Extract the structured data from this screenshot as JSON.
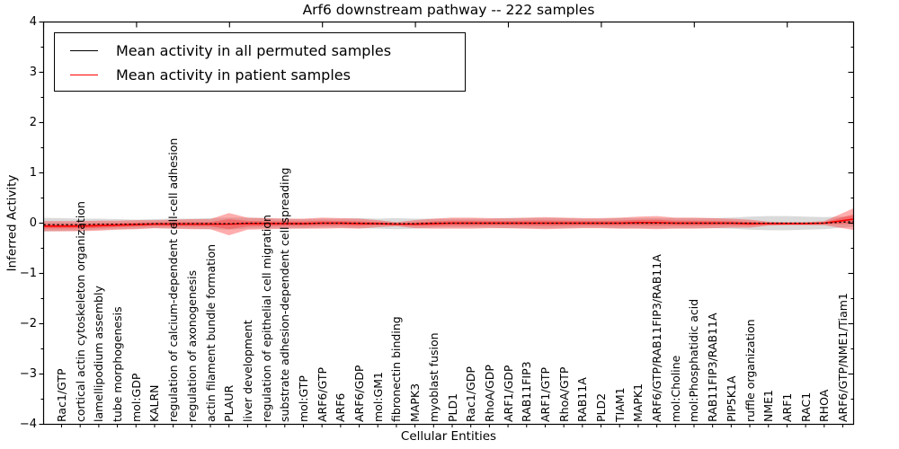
{
  "figure": {
    "title": "Arf6 downstream pathway -- 222 samples",
    "xlabel": "Cellular Entities",
    "ylabel": "Inferred Activity"
  },
  "legend": {
    "items": [
      {
        "label": "Mean activity in all permuted samples",
        "color": "#000000"
      },
      {
        "label": "Mean activity in patient samples",
        "color": "#ff0000"
      }
    ]
  },
  "colors": {
    "permuted_line": "#000000",
    "patient_line": "#ff0000",
    "patient_band": "#ff2828",
    "permuted_band": "#d3d3d3",
    "axis": "#000000"
  },
  "chart_data": {
    "type": "line",
    "title": "Arf6 downstream pathway -- 222 samples",
    "xlabel": "Cellular Entities",
    "ylabel": "Inferred Activity",
    "ylim": [
      -4,
      4
    ],
    "yticks": [
      4,
      3,
      2,
      1,
      0,
      -1,
      -2,
      -3,
      -4
    ],
    "grid": false,
    "legend_position": "upper left",
    "categories": [
      "Rac1/GTP",
      "cortical actin cytoskeleton organization",
      "lamellipodium assembly",
      "tube morphogenesis",
      "mol:GDP",
      "KALRN",
      "regulation of calcium-dependent cell-cell adhesion",
      "regulation of axonogenesis",
      "actin filament bundle formation",
      "PLAUR",
      "liver development",
      "regulation of epithelial cell migration",
      "substrate adhesion-dependent cell spreading",
      "mol:GTP",
      "ARF6/GTP",
      "ARF6",
      "ARF6/GDP",
      "mol:GM1",
      "fibronectin binding",
      "MAPK3",
      "myoblast fusion",
      "PLD1",
      "Rac1/GDP",
      "RhoA/GDP",
      "ARF1/GDP",
      "RAB11FIP3",
      "ARF1/GTP",
      "RhoA/GTP",
      "RAB11A",
      "PLD2",
      "TIAM1",
      "MAPK1",
      "ARF6/GTP/RAB11FIP3/RAB11A",
      "mol:Choline",
      "mol:Phosphatidic acid",
      "RAB11FIP3/RAB11A",
      "PIP5K1A",
      "ruffle organization",
      "NME1",
      "ARF1",
      "RAC1",
      "RHOA",
      "ARF6/GTP/NME1/Tiam1"
    ],
    "series": [
      {
        "name": "Mean activity in all permuted samples",
        "color": "#000000",
        "style": "dotted",
        "values": [
          -0.03,
          -0.03,
          -0.02,
          -0.02,
          -0.02,
          -0.01,
          -0.01,
          -0.01,
          -0.01,
          -0.01,
          0,
          0,
          -0.01,
          -0.01,
          0,
          0,
          0,
          -0.01,
          -0.01,
          -0.01,
          0,
          0,
          0,
          0,
          0,
          0,
          0,
          0,
          0,
          0,
          0,
          0,
          0,
          0,
          0,
          0,
          0,
          0,
          0,
          0,
          0,
          0,
          0.02
        ],
        "band_halfwidth": [
          0.13,
          0.12,
          0.11,
          0.1,
          0.09,
          0.09,
          0.1,
          0.1,
          0.11,
          0.12,
          0.11,
          0.1,
          0.1,
          0.09,
          0.09,
          0.09,
          0.1,
          0.1,
          0.11,
          0.1,
          0.09,
          0.09,
          0.09,
          0.09,
          0.1,
          0.1,
          0.1,
          0.1,
          0.09,
          0.09,
          0.1,
          0.1,
          0.1,
          0.1,
          0.1,
          0.1,
          0.11,
          0.13,
          0.14,
          0.14,
          0.13,
          0.12,
          0.11
        ],
        "band_color": "#d3d3d3"
      },
      {
        "name": "Mean activity in patient samples",
        "color": "#ff0000",
        "style": "solid",
        "values": [
          -0.06,
          -0.06,
          -0.05,
          -0.04,
          -0.03,
          -0.02,
          -0.02,
          -0.02,
          -0.02,
          -0.02,
          -0.01,
          -0.01,
          -0.01,
          -0.01,
          0,
          0,
          -0.01,
          -0.01,
          -0.02,
          -0.02,
          -0.01,
          0,
          0,
          0,
          0,
          0,
          0,
          0,
          0,
          0,
          0,
          0.01,
          0.01,
          0,
          0,
          0,
          0,
          -0.01,
          -0.01,
          -0.01,
          -0.01,
          0,
          0.05
        ],
        "band_halfwidth": [
          0.1,
          0.1,
          0.1,
          0.09,
          0.09,
          0.08,
          0.09,
          0.1,
          0.1,
          0.22,
          0.12,
          0.11,
          0.1,
          0.1,
          0.11,
          0.1,
          0.1,
          0.07,
          0.04,
          0.08,
          0.1,
          0.11,
          0.11,
          0.1,
          0.1,
          0.11,
          0.12,
          0.11,
          0.1,
          0.1,
          0.11,
          0.12,
          0.13,
          0.11,
          0.11,
          0.1,
          0.09,
          0.08,
          0.04,
          0.03,
          0.03,
          0.04,
          0.15
        ],
        "band_color": "#ff2828"
      }
    ]
  }
}
